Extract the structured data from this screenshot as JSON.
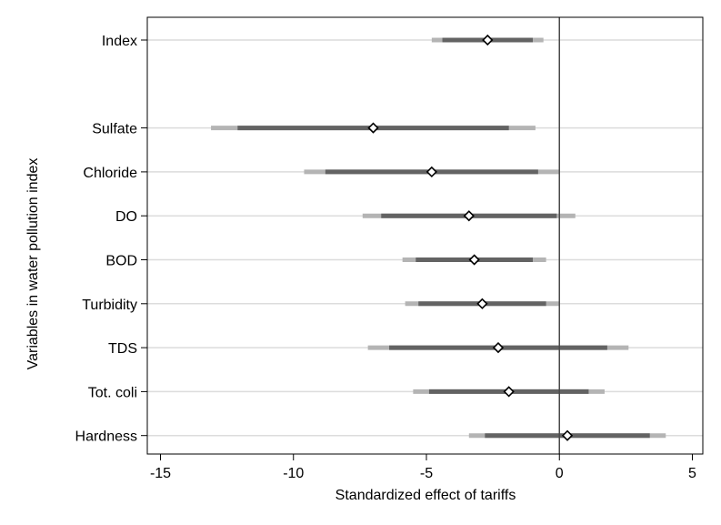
{
  "chart_data": {
    "type": "coefficient-plot",
    "title": "",
    "xlabel": "Standardized effect of tariffs",
    "ylabel": "Variables in water pollution index",
    "xlim": [
      -15.4,
      5.5
    ],
    "xticks": [
      -15,
      -10,
      -5,
      0,
      5
    ],
    "xtick_labels": [
      "-15",
      "-10",
      "-5",
      "0",
      "5"
    ],
    "reference_line": 0,
    "grid": true,
    "series": [
      {
        "name": "Index",
        "estimate": -2.7,
        "ci_inner": [
          -4.4,
          -1.0
        ],
        "ci_outer": [
          -4.8,
          -0.6
        ],
        "slot": 0
      },
      {
        "name": "Sulfate",
        "estimate": -7.0,
        "ci_inner": [
          -12.1,
          -1.9
        ],
        "ci_outer": [
          -13.1,
          -0.9
        ],
        "slot": 2
      },
      {
        "name": "Chloride",
        "estimate": -4.8,
        "ci_inner": [
          -8.8,
          -0.8
        ],
        "ci_outer": [
          -9.6,
          0.0
        ],
        "slot": 3
      },
      {
        "name": "DO",
        "estimate": -3.4,
        "ci_inner": [
          -6.7,
          -0.1
        ],
        "ci_outer": [
          -7.4,
          0.6
        ],
        "slot": 4
      },
      {
        "name": "BOD",
        "estimate": -3.2,
        "ci_inner": [
          -5.4,
          -1.0
        ],
        "ci_outer": [
          -5.9,
          -0.5
        ],
        "slot": 5
      },
      {
        "name": "Turbidity",
        "estimate": -2.9,
        "ci_inner": [
          -5.3,
          -0.5
        ],
        "ci_outer": [
          -5.8,
          0.0
        ],
        "slot": 6
      },
      {
        "name": "TDS",
        "estimate": -2.3,
        "ci_inner": [
          -6.4,
          1.8
        ],
        "ci_outer": [
          -7.2,
          2.6
        ],
        "slot": 7
      },
      {
        "name": "Tot. coli",
        "estimate": -1.9,
        "ci_inner": [
          -4.9,
          1.1
        ],
        "ci_outer": [
          -5.5,
          1.7
        ],
        "slot": 8
      },
      {
        "name": "Hardness",
        "estimate": 0.3,
        "ci_inner": [
          -2.8,
          3.4
        ],
        "ci_outer": [
          -3.4,
          4.0
        ],
        "slot": 9
      }
    ],
    "colors": {
      "ci_outer": "#b4b4b4",
      "ci_inner": "#636363",
      "grid": "#dcdcdc",
      "marker_fill": "#ffffff",
      "marker_stroke": "#000000",
      "reference_line": "#4a4a4a",
      "frame": "#000000"
    }
  }
}
